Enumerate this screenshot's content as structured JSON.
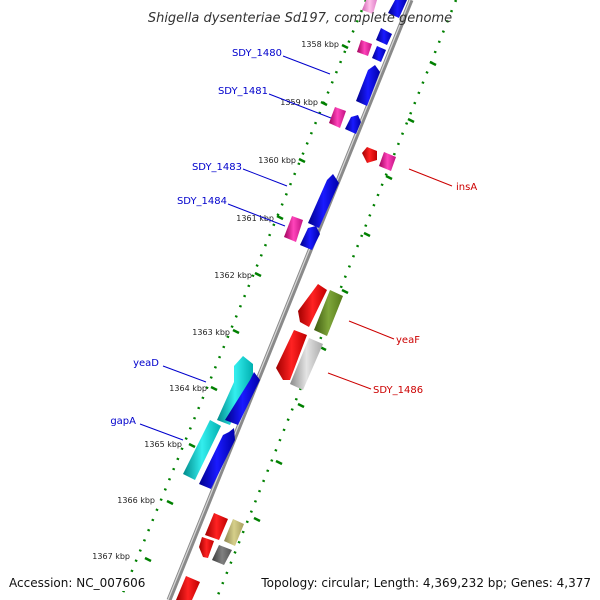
{
  "title": "Shigella dysenteriae Sd197, complete genome",
  "accession_text": "Accession: NC_007606",
  "topology_text": "Topology: circular; Length: 4,369,232 bp; Genes: 4,377",
  "colors": {
    "forward_strand": "#0000ee",
    "forward_rna": "#ee2299",
    "reverse_red": "#ee0000",
    "reverse_olive": "#6b8e23",
    "reverse_gray": "#bbbbbb",
    "reverse_khaki": "#bdb76b",
    "reverse_dark_gray": "#666666",
    "cyan": "#00cccc",
    "ticks": "#008000",
    "backbone": "#777777",
    "label_forward": "#0000cc",
    "label_reverse": "#cc0000"
  },
  "kbp_labels": [
    "1358 kbp",
    "1359 kbp",
    "1360 kbp",
    "1361 kbp",
    "1362 kbp",
    "1363 kbp",
    "1364 kbp",
    "1365 kbp",
    "1366 kbp",
    "1367 kbp"
  ],
  "gene_labels": {
    "left": [
      "SDY_1480",
      "SDY_1481",
      "SDY_1483",
      "SDY_1484",
      "yeaD",
      "gapA"
    ],
    "right": [
      "insA",
      "yeaF",
      "SDY_1486"
    ]
  }
}
